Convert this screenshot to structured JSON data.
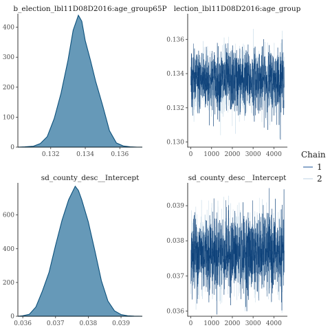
{
  "legend": {
    "title": "Chain",
    "items": [
      {
        "label": "1",
        "color": "#3e6fa6"
      },
      {
        "label": "2",
        "color": "#c7d9e8"
      }
    ]
  },
  "colors": {
    "density_fill": "#6699b8",
    "density_line": "#0b4f7a",
    "trace_chain1": "#0b3f78",
    "trace_chain2": "#c7dbe9"
  },
  "chart_data": [
    {
      "type": "area",
      "title": "b_election_lbl11D08D2016:age_group65P",
      "x_ticks": [
        "0.132",
        "0.134",
        "0.136"
      ],
      "x_tick_values": [
        0.132,
        0.134,
        0.136
      ],
      "y_ticks": [
        "0",
        "100",
        "200",
        "300",
        "400"
      ],
      "y_tick_values": [
        0,
        100,
        200,
        300,
        400
      ],
      "xlim": [
        0.1301,
        0.1373
      ],
      "ylim": [
        0,
        445
      ],
      "x": [
        0.1301,
        0.1305,
        0.131,
        0.1314,
        0.1318,
        0.1322,
        0.1326,
        0.133,
        0.1333,
        0.1336,
        0.1338,
        0.134,
        0.1343,
        0.1346,
        0.135,
        0.1354,
        0.1358,
        0.1362,
        0.1366,
        0.137,
        0.1373
      ],
      "y": [
        0,
        1,
        3,
        12,
        35,
        95,
        180,
        290,
        390,
        440,
        420,
        355,
        290,
        220,
        140,
        55,
        14,
        4,
        1,
        0,
        0
      ]
    },
    {
      "type": "line",
      "title": "lection_lbl11D08D2016:age_group",
      "x_ticks": [
        "0",
        "1000",
        "2000",
        "3000",
        "4000"
      ],
      "x_tick_values": [
        0,
        1000,
        2000,
        3000,
        4000
      ],
      "y_ticks": [
        "0.130",
        "0.132",
        "0.134",
        "0.136"
      ],
      "y_tick_values": [
        0.13,
        0.132,
        0.134,
        0.136
      ],
      "xlim": [
        -150,
        4650
      ],
      "ylim": [
        0.1297,
        0.1375
      ],
      "iterations": 4500,
      "series": [
        {
          "name": "1",
          "mean": 0.1336,
          "sd": 0.00092,
          "min": 0.1301,
          "max": 0.1372
        },
        {
          "name": "2",
          "mean": 0.1336,
          "sd": 0.00092,
          "min": 0.1302,
          "max": 0.137
        }
      ]
    },
    {
      "type": "area",
      "title": "sd_county_desc__Intercept",
      "x_ticks": [
        "0.036",
        "0.037",
        "0.038",
        "0.039"
      ],
      "x_tick_values": [
        0.036,
        0.037,
        0.038,
        0.039
      ],
      "y_ticks": [
        "0",
        "200",
        "400",
        "600"
      ],
      "y_tick_values": [
        0,
        200,
        400,
        600
      ],
      "xlim": [
        0.03585,
        0.03965
      ],
      "ylim": [
        0,
        790
      ],
      "x": [
        0.03585,
        0.036,
        0.0362,
        0.0364,
        0.0366,
        0.0368,
        0.037,
        0.0372,
        0.0374,
        0.0376,
        0.0377,
        0.0378,
        0.038,
        0.0382,
        0.0384,
        0.0386,
        0.0388,
        0.039,
        0.0392,
        0.0394,
        0.03965
      ],
      "y": [
        0,
        3,
        12,
        55,
        150,
        260,
        420,
        570,
        690,
        770,
        745,
        690,
        560,
        390,
        210,
        90,
        32,
        10,
        3,
        1,
        0
      ]
    },
    {
      "type": "line",
      "title": "sd_county_desc__Intercept",
      "x_ticks": [
        "0",
        "1000",
        "2000",
        "3000",
        "4000"
      ],
      "x_tick_values": [
        0,
        1000,
        2000,
        3000,
        4000
      ],
      "y_ticks": [
        "0.036",
        "0.037",
        "0.038",
        "0.039"
      ],
      "y_tick_values": [
        0.036,
        0.037,
        0.038,
        0.039
      ],
      "xlim": [
        -150,
        4650
      ],
      "ylim": [
        0.03585,
        0.03965
      ],
      "iterations": 4500,
      "series": [
        {
          "name": "1",
          "mean": 0.03765,
          "sd": 0.00055,
          "min": 0.0359,
          "max": 0.0395
        },
        {
          "name": "2",
          "mean": 0.03765,
          "sd": 0.00055,
          "min": 0.03595,
          "max": 0.0396
        }
      ]
    }
  ]
}
